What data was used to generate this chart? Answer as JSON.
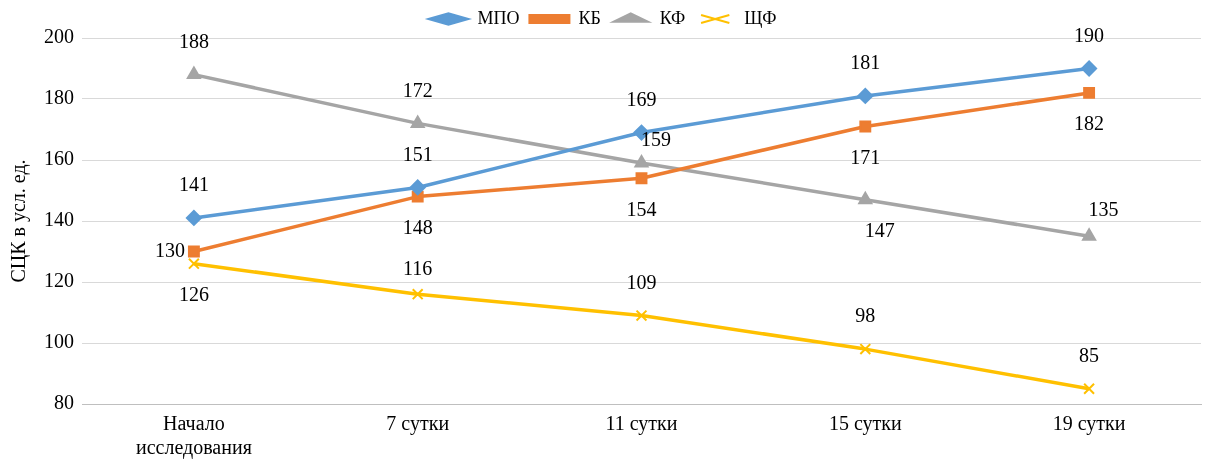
{
  "chart_data": {
    "type": "line",
    "ylabel": "СЦК в усл. ед.",
    "categories": [
      "Начало исследования",
      "7 сутки",
      "11 сутки",
      "15 сутки",
      "19 сутки"
    ],
    "series": [
      {
        "name": "МПО",
        "color": "#5b9bd5",
        "marker": "diamond",
        "values": [
          141,
          151,
          169,
          181,
          190
        ]
      },
      {
        "name": "КБ",
        "color": "#ed7d31",
        "marker": "square",
        "values": [
          130,
          148,
          154,
          171,
          182
        ]
      },
      {
        "name": "КФ",
        "color": "#a5a5a5",
        "marker": "triangle",
        "values": [
          188,
          172,
          159,
          147,
          135
        ]
      },
      {
        "name": "ЩФ",
        "color": "#ffc000",
        "marker": "cross",
        "values": [
          126,
          116,
          109,
          98,
          85
        ]
      }
    ],
    "ylim": [
      80,
      200
    ],
    "yticks": [
      80,
      100,
      120,
      140,
      160,
      180,
      200
    ],
    "grid": "y",
    "legend": "top",
    "data_labels": true
  }
}
